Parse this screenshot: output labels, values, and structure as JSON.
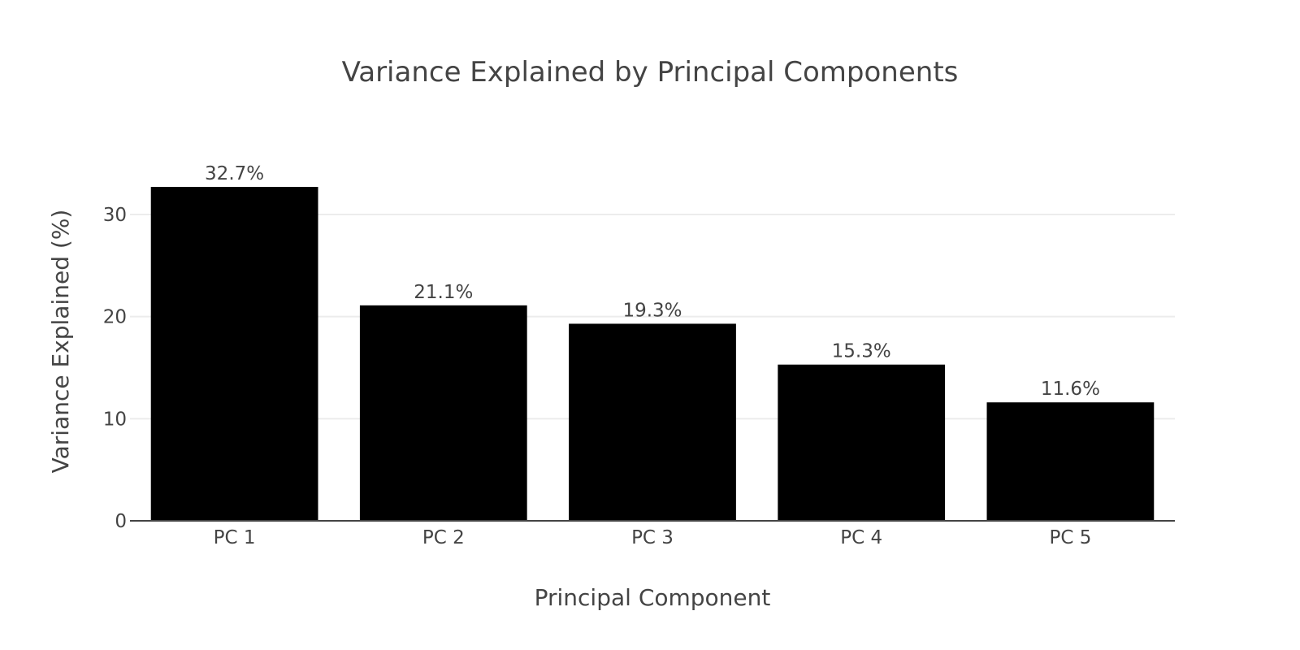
{
  "chart_data": {
    "type": "bar",
    "title": "Variance Explained by Principal Components",
    "xlabel": "Principal Component",
    "ylabel": "Variance Explained (%)",
    "categories": [
      "PC 1",
      "PC 2",
      "PC 3",
      "PC 4",
      "PC 5"
    ],
    "values": [
      32.7,
      21.1,
      19.3,
      15.3,
      11.6
    ],
    "data_labels": [
      "32.7%",
      "21.1%",
      "19.3%",
      "15.3%",
      "11.6%"
    ],
    "ylim": [
      0,
      33.5
    ],
    "yticks": [
      0,
      10,
      20,
      30
    ],
    "grid": true,
    "bar_color": "#000000",
    "text_color": "#444444",
    "grid_color": "#ececec"
  }
}
